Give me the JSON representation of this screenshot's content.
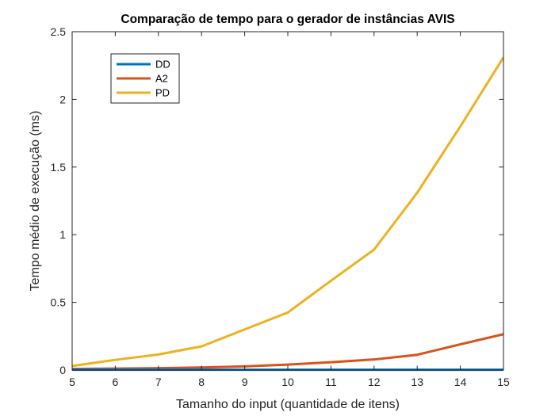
{
  "chart_data": {
    "type": "line",
    "title": "Comparação de tempo para o gerador de instâncias AVIS",
    "xlabel": "Tamanho do input (quantidade de itens)",
    "ylabel": "Tempo médio de execução (ms)",
    "xlim": [
      5,
      15
    ],
    "ylim": [
      0,
      2.5
    ],
    "xticks": [
      "5",
      "6",
      "7",
      "8",
      "9",
      "10",
      "11",
      "12",
      "13",
      "14",
      "15"
    ],
    "yticks": [
      "0",
      "0.5",
      "1",
      "1.5",
      "2",
      "2.5"
    ],
    "grid": false,
    "legend_position": "top-left",
    "x": [
      5,
      6,
      7,
      8,
      9,
      10,
      11,
      12,
      13,
      14,
      15
    ],
    "series": [
      {
        "name": "DD",
        "color": "#0072BD",
        "values": [
          0.002,
          0.002,
          0.002,
          0.002,
          0.002,
          0.002,
          0.002,
          0.002,
          0.002,
          0.002,
          0.002
        ]
      },
      {
        "name": "A2",
        "color": "#D95319",
        "values": [
          0.008,
          0.011,
          0.014,
          0.019,
          0.027,
          0.04,
          0.058,
          0.078,
          0.113,
          0.19,
          0.265
        ]
      },
      {
        "name": "PD",
        "color": "#EDB120",
        "values": [
          0.03,
          0.075,
          0.115,
          0.175,
          0.3,
          0.425,
          0.66,
          0.89,
          1.31,
          1.8,
          2.31
        ]
      }
    ]
  }
}
